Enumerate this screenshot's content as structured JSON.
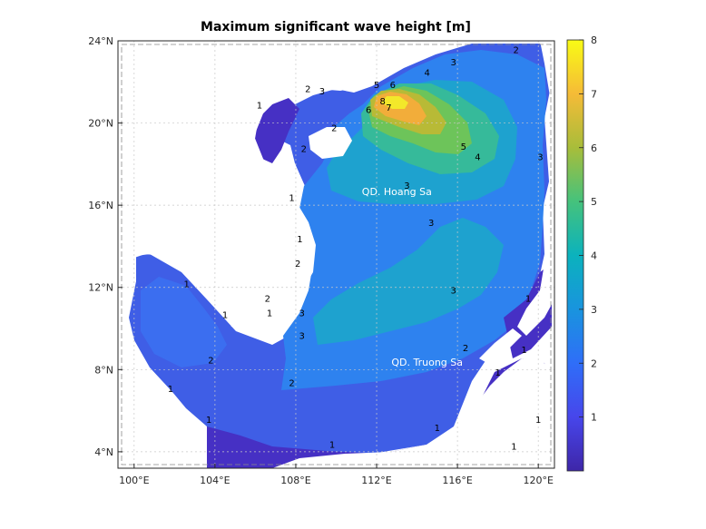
{
  "chart_data": {
    "type": "heatmap",
    "title": "Maximum significant wave height [m]",
    "x_ticks": [
      {
        "value": 100,
        "label": "100°E"
      },
      {
        "value": 104,
        "label": "104°E"
      },
      {
        "value": 108,
        "label": "108°E"
      },
      {
        "value": 112,
        "label": "112°E"
      },
      {
        "value": 116,
        "label": "116°E"
      },
      {
        "value": 120,
        "label": "120°E"
      }
    ],
    "y_ticks": [
      {
        "value": 4,
        "label": "4°N"
      },
      {
        "value": 8,
        "label": "8°N"
      },
      {
        "value": 12,
        "label": "12°N"
      },
      {
        "value": 16,
        "label": "16°N"
      },
      {
        "value": 20,
        "label": "20°N"
      },
      {
        "value": 24,
        "label": "24°N"
      }
    ],
    "xlim": [
      99.2,
      120.8
    ],
    "ylim": [
      3.2,
      24
    ],
    "grid": true,
    "colorbar": {
      "min": 0,
      "max": 8,
      "ticks": [
        "1",
        "2",
        "3",
        "4",
        "5",
        "6",
        "7",
        "8"
      ],
      "colormap": "parula"
    },
    "place_labels": [
      {
        "text": "QD. Hoang Sa",
        "lon": 113.0,
        "lat": 16.5
      },
      {
        "text": "QD. Truong Sa",
        "lon": 114.5,
        "lat": 8.2
      }
    ],
    "contour_labels": [
      {
        "text": "8",
        "lon": 112.3,
        "lat": 20.9
      },
      {
        "text": "7",
        "lon": 112.6,
        "lat": 20.6
      },
      {
        "text": "6",
        "lon": 111.6,
        "lat": 20.5
      },
      {
        "text": "6",
        "lon": 112.8,
        "lat": 21.7
      },
      {
        "text": "5",
        "lon": 112.0,
        "lat": 21.7
      },
      {
        "text": "5",
        "lon": 116.3,
        "lat": 18.7
      },
      {
        "text": "4",
        "lon": 114.5,
        "lat": 22.3
      },
      {
        "text": "4",
        "lon": 117.0,
        "lat": 18.2
      },
      {
        "text": "3",
        "lon": 115.8,
        "lat": 22.8
      },
      {
        "text": "3",
        "lon": 113.5,
        "lat": 16.8
      },
      {
        "text": "3",
        "lon": 114.7,
        "lat": 15.0
      },
      {
        "text": "3",
        "lon": 115.8,
        "lat": 11.7
      },
      {
        "text": "3",
        "lon": 108.3,
        "lat": 10.6
      },
      {
        "text": "3",
        "lon": 108.3,
        "lat": 9.5
      },
      {
        "text": "3",
        "lon": 109.3,
        "lat": 21.4
      },
      {
        "text": "3",
        "lon": 120.1,
        "lat": 18.2
      },
      {
        "text": "2",
        "lon": 118.9,
        "lat": 23.4
      },
      {
        "text": "2",
        "lon": 108.4,
        "lat": 18.6
      },
      {
        "text": "2",
        "lon": 108.6,
        "lat": 21.5
      },
      {
        "text": "2",
        "lon": 106.6,
        "lat": 11.3
      },
      {
        "text": "2",
        "lon": 103.8,
        "lat": 8.3
      },
      {
        "text": "2",
        "lon": 107.8,
        "lat": 7.2
      },
      {
        "text": "2",
        "lon": 116.4,
        "lat": 8.9
      },
      {
        "text": "2",
        "lon": 108.1,
        "lat": 13.0
      },
      {
        "text": "2",
        "lon": 109.9,
        "lat": 19.6
      },
      {
        "text": "1",
        "lon": 106.2,
        "lat": 20.7
      },
      {
        "text": "1",
        "lon": 107.8,
        "lat": 16.2
      },
      {
        "text": "1",
        "lon": 108.2,
        "lat": 14.2
      },
      {
        "text": "1",
        "lon": 102.6,
        "lat": 12.0
      },
      {
        "text": "1",
        "lon": 104.5,
        "lat": 10.5
      },
      {
        "text": "1",
        "lon": 106.7,
        "lat": 10.6
      },
      {
        "text": "1",
        "lon": 101.8,
        "lat": 6.9
      },
      {
        "text": "1",
        "lon": 103.7,
        "lat": 5.4
      },
      {
        "text": "1",
        "lon": 109.8,
        "lat": 4.2
      },
      {
        "text": "1",
        "lon": 115.0,
        "lat": 5.0
      },
      {
        "text": "1",
        "lon": 118.0,
        "lat": 7.7
      },
      {
        "text": "1",
        "lon": 119.3,
        "lat": 8.8
      },
      {
        "text": "1",
        "lon": 120.0,
        "lat": 5.4
      },
      {
        "text": "1",
        "lon": 118.8,
        "lat": 4.1
      },
      {
        "text": "1",
        "lon": 119.5,
        "lat": 11.3
      }
    ]
  }
}
